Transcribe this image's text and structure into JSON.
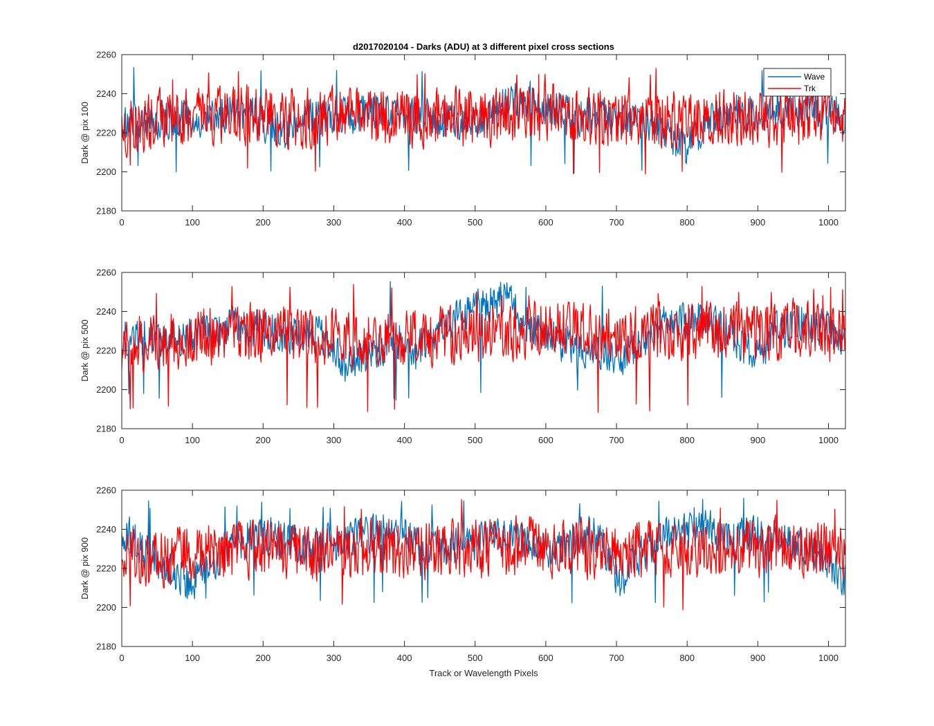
{
  "chart_data": [
    {
      "type": "line",
      "title": "d2017020104 - Darks (ADU) at 3 different pixel cross sections",
      "xlabel": "",
      "ylabel": "Dark @ pix 100",
      "xlim": [
        0,
        1024
      ],
      "ylim": [
        2180,
        2260
      ],
      "xticks": [
        0,
        100,
        200,
        300,
        400,
        500,
        600,
        700,
        800,
        900,
        1000
      ],
      "yticks": [
        2180,
        2200,
        2220,
        2240,
        2260
      ],
      "grid": false,
      "legend": {
        "placement": "top-right",
        "entries": [
          "Wave",
          "Trk"
        ]
      },
      "series": [
        {
          "name": "Wave",
          "color": "#0072BD",
          "x": [
            0,
            32,
            64,
            96,
            128,
            160,
            192,
            224,
            256,
            288,
            320,
            352,
            384,
            416,
            448,
            480,
            512,
            544,
            576,
            608,
            640,
            672,
            704,
            736,
            768,
            800,
            832,
            864,
            896,
            928,
            960,
            992,
            1024
          ],
          "mean": [
            2226,
            2225,
            2227,
            2228,
            2227,
            2232,
            2227,
            2220,
            2227,
            2228,
            2228,
            2232,
            2228,
            2227,
            2228,
            2225,
            2228,
            2234,
            2237,
            2233,
            2228,
            2228,
            2226,
            2227,
            2220,
            2212,
            2226,
            2229,
            2231,
            2233,
            2233,
            2230,
            2229
          ],
          "noise": 6,
          "range_min": 2199,
          "range_max": 2254
        },
        {
          "name": "Trk",
          "color": "#FF0000",
          "x": [
            0,
            32,
            64,
            96,
            128,
            160,
            192,
            224,
            256,
            288,
            320,
            352,
            384,
            416,
            448,
            480,
            512,
            544,
            576,
            608,
            640,
            672,
            704,
            736,
            768,
            800,
            832,
            864,
            896,
            928,
            960,
            992,
            1024
          ],
          "mean": [
            2223,
            2224,
            2228,
            2228,
            2229,
            2230,
            2229,
            2228,
            2227,
            2229,
            2228,
            2227,
            2228,
            2227,
            2228,
            2228,
            2228,
            2229,
            2231,
            2231,
            2229,
            2227,
            2227,
            2228,
            2227,
            2226,
            2227,
            2228,
            2229,
            2228,
            2229,
            2230,
            2228
          ],
          "noise": 9,
          "range_min": 2198,
          "range_max": 2253
        }
      ]
    },
    {
      "type": "line",
      "title": "",
      "xlabel": "",
      "ylabel": "Dark @ pix 500",
      "xlim": [
        0,
        1024
      ],
      "ylim": [
        2180,
        2260
      ],
      "xticks": [
        0,
        100,
        200,
        300,
        400,
        500,
        600,
        700,
        800,
        900,
        1000
      ],
      "yticks": [
        2180,
        2200,
        2220,
        2240,
        2260
      ],
      "grid": false,
      "series": [
        {
          "name": "Wave",
          "color": "#0072BD",
          "x": [
            0,
            32,
            64,
            96,
            128,
            160,
            192,
            224,
            256,
            288,
            320,
            352,
            384,
            416,
            448,
            480,
            512,
            544,
            576,
            608,
            640,
            672,
            704,
            736,
            768,
            800,
            832,
            864,
            896,
            928,
            960,
            992,
            1024
          ],
          "mean": [
            2226,
            2226,
            2227,
            2228,
            2229,
            2232,
            2232,
            2229,
            2229,
            2227,
            2211,
            2220,
            2225,
            2219,
            2231,
            2239,
            2244,
            2247,
            2231,
            2228,
            2220,
            2218,
            2215,
            2225,
            2233,
            2235,
            2236,
            2228,
            2215,
            2230,
            2234,
            2232,
            2224
          ],
          "noise": 6,
          "range_min": 2194,
          "range_max": 2258
        },
        {
          "name": "Trk",
          "color": "#FF0000",
          "x": [
            0,
            32,
            64,
            96,
            128,
            160,
            192,
            224,
            256,
            288,
            320,
            352,
            384,
            416,
            448,
            480,
            512,
            544,
            576,
            608,
            640,
            672,
            704,
            736,
            768,
            800,
            832,
            864,
            896,
            928,
            960,
            992,
            1024
          ],
          "mean": [
            2224,
            2224,
            2225,
            2227,
            2228,
            2229,
            2229,
            2228,
            2229,
            2228,
            2225,
            2224,
            2225,
            2226,
            2227,
            2228,
            2229,
            2231,
            2230,
            2231,
            2231,
            2229,
            2228,
            2228,
            2229,
            2229,
            2230,
            2230,
            2229,
            2230,
            2231,
            2229,
            2228
          ],
          "noise": 9,
          "range_min": 2188,
          "range_max": 2254
        }
      ]
    },
    {
      "type": "line",
      "title": "",
      "xlabel": "Track or Wavelength Pixels",
      "ylabel": "Dark @ pix 900",
      "xlim": [
        0,
        1024
      ],
      "ylim": [
        2180,
        2260
      ],
      "xticks": [
        0,
        100,
        200,
        300,
        400,
        500,
        600,
        700,
        800,
        900,
        1000
      ],
      "yticks": [
        2180,
        2200,
        2220,
        2240,
        2260
      ],
      "grid": false,
      "series": [
        {
          "name": "Wave",
          "color": "#0072BD",
          "x": [
            0,
            32,
            64,
            96,
            128,
            160,
            192,
            224,
            256,
            288,
            320,
            352,
            384,
            416,
            448,
            480,
            512,
            544,
            576,
            608,
            640,
            672,
            704,
            736,
            768,
            800,
            832,
            864,
            896,
            928,
            960,
            992,
            1024
          ],
          "mean": [
            2240,
            2228,
            2220,
            2212,
            2224,
            2232,
            2238,
            2236,
            2230,
            2232,
            2234,
            2238,
            2240,
            2232,
            2230,
            2232,
            2234,
            2236,
            2236,
            2228,
            2234,
            2238,
            2214,
            2228,
            2236,
            2238,
            2240,
            2234,
            2238,
            2236,
            2232,
            2226,
            2214
          ],
          "noise": 6,
          "range_min": 2202,
          "range_max": 2256
        },
        {
          "name": "Trk",
          "color": "#FF0000",
          "x": [
            0,
            32,
            64,
            96,
            128,
            160,
            192,
            224,
            256,
            288,
            320,
            352,
            384,
            416,
            448,
            480,
            512,
            544,
            576,
            608,
            640,
            672,
            704,
            736,
            768,
            800,
            832,
            864,
            896,
            928,
            960,
            992,
            1024
          ],
          "mean": [
            2226,
            2224,
            2225,
            2227,
            2228,
            2229,
            2230,
            2230,
            2229,
            2229,
            2229,
            2230,
            2230,
            2229,
            2229,
            2230,
            2230,
            2231,
            2231,
            2230,
            2230,
            2230,
            2229,
            2230,
            2231,
            2231,
            2231,
            2230,
            2231,
            2231,
            2231,
            2230,
            2229
          ],
          "noise": 9,
          "range_min": 2196,
          "range_max": 2256
        }
      ]
    }
  ]
}
